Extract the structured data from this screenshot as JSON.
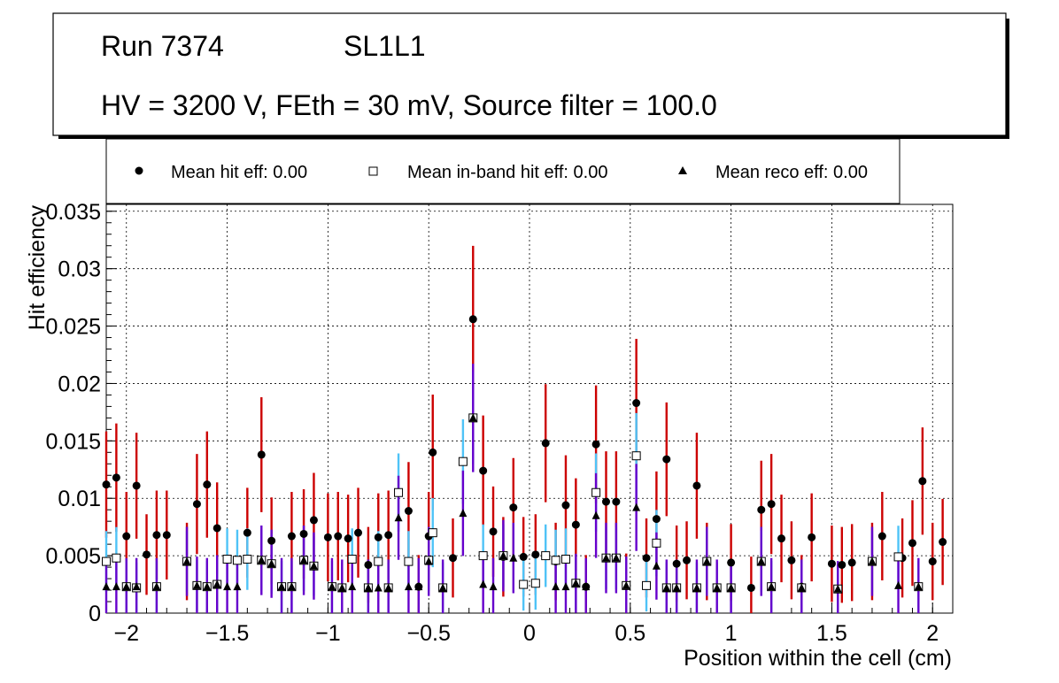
{
  "title_box": {
    "run_label": "Run 7374",
    "layer_label": "SL1L1",
    "conditions": "HV = 3200 V, FEth = 30 mV, Source filter = 100.0"
  },
  "legend": {
    "entries": [
      {
        "symbol": "circle",
        "label": "Mean hit  eff: 0.00"
      },
      {
        "symbol": "open-square",
        "label": "Mean in-band hit eff: 0.00"
      },
      {
        "symbol": "triangle",
        "label": "Mean reco eff: 0.00"
      }
    ]
  },
  "colors": {
    "hit_error": "#cc0000",
    "inband_error": "#4fc3f7",
    "reco_error": "#6600cc",
    "marker": "#000000"
  },
  "chart_data": {
    "type": "scatter",
    "xlabel": "Position within the cell (cm)",
    "ylabel": "Hit efficiency",
    "xlim": [
      -2.1,
      2.1
    ],
    "ylim": [
      0,
      0.0356
    ],
    "grid": true,
    "x_ticks": [
      -2,
      -1.5,
      -1,
      -0.5,
      0,
      0.5,
      1,
      1.5,
      2
    ],
    "x_tick_labels": [
      "−2",
      "−1.5",
      "−1",
      "−0.5",
      "0",
      "0.5",
      "1",
      "1.5",
      "2"
    ],
    "y_ticks": [
      0,
      0.005,
      0.01,
      0.015,
      0.02,
      0.025,
      0.03,
      0.035
    ],
    "y_tick_labels": [
      "0",
      "0.005",
      "0.01",
      "0.015",
      "0.02",
      "0.025",
      "0.03",
      "0.035"
    ],
    "series": [
      {
        "name": "Mean hit eff",
        "marker": "circle",
        "points": [
          [
            -2.1,
            0.0112
          ],
          [
            -2.05,
            0.0118
          ],
          [
            -2.0,
            0.0067
          ],
          [
            -1.95,
            0.0111
          ],
          [
            -1.9,
            0.0051
          ],
          [
            -1.85,
            0.0068
          ],
          [
            -1.8,
            0.0068
          ],
          [
            -1.7,
            0.0045
          ],
          [
            -1.65,
            0.0095
          ],
          [
            -1.6,
            0.0112
          ],
          [
            -1.55,
            0.0074
          ],
          [
            -1.4,
            0.007
          ],
          [
            -1.33,
            0.0138
          ],
          [
            -1.28,
            0.0063
          ],
          [
            -1.18,
            0.0067
          ],
          [
            -1.12,
            0.0069
          ],
          [
            -1.07,
            0.0081
          ],
          [
            -1.0,
            0.0066
          ],
          [
            -0.95,
            0.0067
          ],
          [
            -0.9,
            0.0065
          ],
          [
            -0.85,
            0.007
          ],
          [
            -0.8,
            0.0042
          ],
          [
            -0.75,
            0.0066
          ],
          [
            -0.7,
            0.0068
          ],
          [
            -0.6,
            0.0089
          ],
          [
            -0.55,
            0.0023
          ],
          [
            -0.5,
            0.0067
          ],
          [
            -0.48,
            0.014
          ],
          [
            -0.38,
            0.0048
          ],
          [
            -0.28,
            0.0256
          ],
          [
            -0.23,
            0.0124
          ],
          [
            -0.18,
            0.0071
          ],
          [
            -0.13,
            0.0049
          ],
          [
            -0.08,
            0.0092
          ],
          [
            -0.03,
            0.0049
          ],
          [
            0.03,
            0.0051
          ],
          [
            0.08,
            0.0148
          ],
          [
            0.13,
            0.0045
          ],
          [
            0.18,
            0.0094
          ],
          [
            0.23,
            0.0077
          ],
          [
            0.28,
            0.0023
          ],
          [
            0.33,
            0.0147
          ],
          [
            0.38,
            0.0097
          ],
          [
            0.43,
            0.0097
          ],
          [
            0.48,
            0.0024
          ],
          [
            0.53,
            0.0183
          ],
          [
            0.58,
            0.0048
          ],
          [
            0.63,
            0.0082
          ],
          [
            0.68,
            0.0134
          ],
          [
            0.73,
            0.0043
          ],
          [
            0.78,
            0.0046
          ],
          [
            0.83,
            0.0111
          ],
          [
            0.88,
            0.0045
          ],
          [
            1.0,
            0.0044
          ],
          [
            1.1,
            0.0022
          ],
          [
            1.15,
            0.009
          ],
          [
            1.2,
            0.0095
          ],
          [
            1.25,
            0.0065
          ],
          [
            1.3,
            0.0046
          ],
          [
            1.35,
            0.0023
          ],
          [
            1.4,
            0.0066
          ],
          [
            1.5,
            0.0043
          ],
          [
            1.55,
            0.0042
          ],
          [
            1.6,
            0.0044
          ],
          [
            1.7,
            0.0045
          ],
          [
            1.75,
            0.0067
          ],
          [
            1.85,
            0.0048
          ],
          [
            1.9,
            0.0061
          ],
          [
            1.95,
            0.0115
          ],
          [
            2.0,
            0.0045
          ],
          [
            2.05,
            0.0062
          ]
        ]
      },
      {
        "name": "Mean in-band hit eff",
        "marker": "open-square",
        "points": [
          [
            -2.1,
            0.0045
          ],
          [
            -2.05,
            0.0048
          ],
          [
            -2.0,
            0.0023
          ],
          [
            -1.95,
            0.0022
          ],
          [
            -1.85,
            0.0023
          ],
          [
            -1.7,
            0.0045
          ],
          [
            -1.65,
            0.0024
          ],
          [
            -1.6,
            0.0023
          ],
          [
            -1.55,
            0.0025
          ],
          [
            -1.5,
            0.0047
          ],
          [
            -1.45,
            0.0046
          ],
          [
            -1.4,
            0.0047
          ],
          [
            -1.33,
            0.0046
          ],
          [
            -1.28,
            0.0043
          ],
          [
            -1.23,
            0.0023
          ],
          [
            -1.18,
            0.0023
          ],
          [
            -1.12,
            0.0046
          ],
          [
            -1.07,
            0.0041
          ],
          [
            -0.98,
            0.0023
          ],
          [
            -0.93,
            0.0022
          ],
          [
            -0.88,
            0.0047
          ],
          [
            -0.8,
            0.0022
          ],
          [
            -0.75,
            0.0045
          ],
          [
            -0.7,
            0.0022
          ],
          [
            -0.65,
            0.0105
          ],
          [
            -0.6,
            0.0045
          ],
          [
            -0.5,
            0.0046
          ],
          [
            -0.48,
            0.007
          ],
          [
            -0.43,
            0.0022
          ],
          [
            -0.33,
            0.0132
          ],
          [
            -0.28,
            0.017
          ],
          [
            -0.23,
            0.005
          ],
          [
            -0.13,
            0.005
          ],
          [
            -0.03,
            0.0025
          ],
          [
            0.03,
            0.0026
          ],
          [
            0.08,
            0.005
          ],
          [
            0.13,
            0.0046
          ],
          [
            0.18,
            0.0047
          ],
          [
            0.23,
            0.0026
          ],
          [
            0.33,
            0.0105
          ],
          [
            0.38,
            0.0048
          ],
          [
            0.43,
            0.0048
          ],
          [
            0.48,
            0.0024
          ],
          [
            0.53,
            0.0137
          ],
          [
            0.58,
            0.0024
          ],
          [
            0.63,
            0.0061
          ],
          [
            0.68,
            0.0022
          ],
          [
            0.73,
            0.0022
          ],
          [
            0.83,
            0.0022
          ],
          [
            0.88,
            0.0045
          ],
          [
            0.93,
            0.0022
          ],
          [
            1.0,
            0.0022
          ],
          [
            1.15,
            0.0045
          ],
          [
            1.2,
            0.0023
          ],
          [
            1.35,
            0.0022
          ],
          [
            1.53,
            0.0021
          ],
          [
            1.7,
            0.0045
          ],
          [
            1.83,
            0.0049
          ],
          [
            1.93,
            0.0023
          ]
        ]
      },
      {
        "name": "Mean reco eff",
        "marker": "triangle",
        "points": [
          [
            -2.1,
            0.0023
          ],
          [
            -2.05,
            0.0023
          ],
          [
            -2.0,
            0.0023
          ],
          [
            -1.95,
            0.0023
          ],
          [
            -1.85,
            0.0023
          ],
          [
            -1.7,
            0.0045
          ],
          [
            -1.65,
            0.0024
          ],
          [
            -1.6,
            0.0023
          ],
          [
            -1.55,
            0.0025
          ],
          [
            -1.5,
            0.0023
          ],
          [
            -1.45,
            0.0023
          ],
          [
            -1.33,
            0.0046
          ],
          [
            -1.28,
            0.0043
          ],
          [
            -1.23,
            0.0023
          ],
          [
            -1.18,
            0.0023
          ],
          [
            -1.12,
            0.0046
          ],
          [
            -1.07,
            0.0041
          ],
          [
            -0.98,
            0.0023
          ],
          [
            -0.93,
            0.0022
          ],
          [
            -0.88,
            0.0023
          ],
          [
            -0.8,
            0.0022
          ],
          [
            -0.75,
            0.0022
          ],
          [
            -0.7,
            0.0022
          ],
          [
            -0.65,
            0.0083
          ],
          [
            -0.6,
            0.0023
          ],
          [
            -0.55,
            0.0023
          ],
          [
            -0.5,
            0.0045
          ],
          [
            -0.43,
            0.0022
          ],
          [
            -0.33,
            0.0087
          ],
          [
            -0.28,
            0.017
          ],
          [
            -0.23,
            0.0025
          ],
          [
            -0.18,
            0.0023
          ],
          [
            -0.13,
            0.005
          ],
          [
            -0.08,
            0.0048
          ],
          [
            0.13,
            0.0023
          ],
          [
            0.18,
            0.0023
          ],
          [
            0.23,
            0.0026
          ],
          [
            0.28,
            0.0023
          ],
          [
            0.33,
            0.0085
          ],
          [
            0.38,
            0.0048
          ],
          [
            0.43,
            0.0048
          ],
          [
            0.48,
            0.0024
          ],
          [
            0.53,
            0.0092
          ],
          [
            0.63,
            0.0041
          ],
          [
            0.68,
            0.0022
          ],
          [
            0.73,
            0.0022
          ],
          [
            0.83,
            0.0022
          ],
          [
            0.88,
            0.0045
          ],
          [
            0.93,
            0.0022
          ],
          [
            1.0,
            0.0022
          ],
          [
            1.15,
            0.0045
          ],
          [
            1.2,
            0.0023
          ],
          [
            1.35,
            0.0022
          ],
          [
            1.53,
            0.0021
          ],
          [
            1.7,
            0.0045
          ],
          [
            1.83,
            0.0024
          ],
          [
            1.93,
            0.0023
          ]
        ]
      }
    ]
  }
}
